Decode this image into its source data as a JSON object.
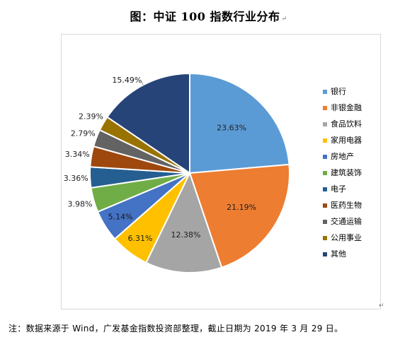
{
  "header": {
    "title": "图：中证 100 指数行业分布",
    "return_mark": "↵"
  },
  "footer": {
    "note": "注：数据来源于 Wind，广发基金指数投资部整理，截止日期为 2019 年 3 月 29 日。",
    "return_mark": "↵"
  },
  "chart_data": {
    "type": "pie",
    "title": "图：中证 100 指数行业分布",
    "legend_position": "right",
    "slices": [
      {
        "name": "银行",
        "value": 23.63,
        "label": "23.63%",
        "color": "#5B9BD5"
      },
      {
        "name": "非银金融",
        "value": 21.19,
        "label": "21.19%",
        "color": "#ED7D31"
      },
      {
        "name": "食品饮料",
        "value": 12.38,
        "label": "12.38%",
        "color": "#A5A5A5"
      },
      {
        "name": "家用电器",
        "value": 6.31,
        "label": "6.31%",
        "color": "#FFC000"
      },
      {
        "name": "房地产",
        "value": 5.14,
        "label": "5.14%",
        "color": "#4472C4"
      },
      {
        "name": "建筑装饰",
        "value": 3.98,
        "label": "3.98%",
        "color": "#70AD47"
      },
      {
        "name": "电子",
        "value": 3.36,
        "label": "3.36%",
        "color": "#255E91"
      },
      {
        "name": "医药生物",
        "value": 3.34,
        "label": "3.34%",
        "color": "#9E480E"
      },
      {
        "name": "交通运输",
        "value": 2.79,
        "label": "2.79%",
        "color": "#636363"
      },
      {
        "name": "公用事业",
        "value": 2.39,
        "label": "2.39%",
        "color": "#997300"
      },
      {
        "name": "其他",
        "value": 15.49,
        "label": "15.49%",
        "color": "#264478"
      }
    ]
  }
}
